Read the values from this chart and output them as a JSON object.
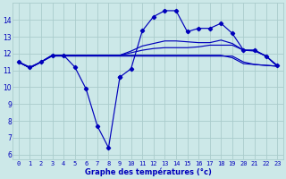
{
  "xlabel": "Graphe des températures (°c)",
  "background_color": "#cce8e8",
  "grid_color": "#aacccc",
  "line_color": "#0000bb",
  "ylim": [
    5.7,
    15.0
  ],
  "yticks": [
    6,
    7,
    8,
    9,
    10,
    11,
    12,
    13,
    14
  ],
  "xlim": [
    -0.5,
    23.5
  ],
  "xticks": [
    0,
    1,
    2,
    3,
    4,
    5,
    6,
    7,
    8,
    9,
    10,
    11,
    12,
    13,
    14,
    15,
    16,
    17,
    18,
    19,
    20,
    21,
    22,
    23
  ],
  "dip_line_x": [
    0,
    1,
    2,
    3,
    4,
    5,
    6,
    7,
    8,
    9
  ],
  "dip_line_y": [
    11.5,
    11.2,
    11.5,
    11.9,
    11.9,
    11.2,
    9.9,
    7.7,
    6.4,
    10.6
  ],
  "peak_line_x": [
    9,
    10,
    11,
    12,
    13,
    14,
    15,
    16,
    17,
    18,
    19,
    20,
    21,
    22,
    23
  ],
  "peak_line_y": [
    10.6,
    11.1,
    13.35,
    14.2,
    14.55,
    14.55,
    13.3,
    13.5,
    13.5,
    13.8,
    13.2,
    12.2,
    12.2,
    11.85,
    11.3
  ],
  "flat_line1_x": [
    0,
    1,
    2,
    3,
    4,
    5,
    6,
    7,
    8,
    9,
    10,
    11,
    12,
    13,
    14,
    15,
    16,
    17,
    18,
    19,
    20,
    21,
    22,
    23
  ],
  "flat_line1_y": [
    11.5,
    11.15,
    11.5,
    11.85,
    11.85,
    11.85,
    11.85,
    11.85,
    11.85,
    11.85,
    11.85,
    11.85,
    11.85,
    11.85,
    11.85,
    11.85,
    11.85,
    11.85,
    11.85,
    11.85,
    11.5,
    11.35,
    11.3,
    11.25
  ],
  "flat_line2_x": [
    0,
    1,
    2,
    3,
    4,
    5,
    6,
    7,
    8,
    9,
    10,
    11,
    12,
    13,
    14,
    15,
    16,
    17,
    18,
    19,
    20,
    21,
    22,
    23
  ],
  "flat_line2_y": [
    11.5,
    11.15,
    11.5,
    11.9,
    11.9,
    11.9,
    11.9,
    11.9,
    11.9,
    11.9,
    11.9,
    11.9,
    11.9,
    11.9,
    11.9,
    11.9,
    11.9,
    11.9,
    11.9,
    11.75,
    11.4,
    11.35,
    11.3,
    11.25
  ],
  "rising_line_x": [
    0,
    1,
    2,
    3,
    4,
    5,
    6,
    7,
    8,
    9,
    10,
    11,
    12,
    13,
    14,
    15,
    16,
    17,
    18,
    19,
    20,
    21,
    22,
    23
  ],
  "rising_line_y": [
    11.5,
    11.15,
    11.5,
    11.9,
    11.9,
    11.9,
    11.9,
    11.9,
    11.9,
    11.9,
    12.05,
    12.2,
    12.3,
    12.35,
    12.35,
    12.35,
    12.4,
    12.5,
    12.5,
    12.5,
    12.2,
    12.15,
    11.85,
    11.25
  ],
  "upper_line_x": [
    0,
    1,
    2,
    3,
    4,
    5,
    6,
    7,
    8,
    9,
    10,
    11,
    12,
    13,
    14,
    15,
    16,
    17,
    18,
    19,
    20,
    21,
    22,
    23
  ],
  "upper_line_y": [
    11.5,
    11.15,
    11.5,
    11.9,
    11.9,
    11.9,
    11.9,
    11.9,
    11.9,
    11.9,
    12.15,
    12.45,
    12.6,
    12.75,
    12.75,
    12.7,
    12.65,
    12.65,
    12.8,
    12.6,
    12.2,
    12.2,
    11.85,
    11.25
  ]
}
